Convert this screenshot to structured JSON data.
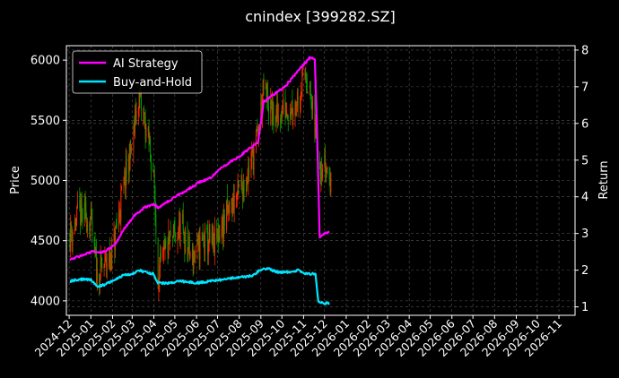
{
  "chart_data": {
    "type": "line",
    "title": "cnindex [399282.SZ]",
    "ylabel": "Price",
    "y2label": "Return",
    "ylim": [
      3880,
      6120
    ],
    "y2lim": [
      0.77,
      8.12
    ],
    "yticks": [
      4000,
      4500,
      5000,
      5500,
      6000
    ],
    "y2ticks": [
      1,
      2,
      3,
      4,
      5,
      6,
      7,
      8
    ],
    "xlim": [
      "2024-11-27",
      "2026-11-24"
    ],
    "xticks": [
      "2024-12",
      "2025-01",
      "2025-02",
      "2025-03",
      "2025-04",
      "2025-05",
      "2025-06",
      "2025-07",
      "2025-08",
      "2025-09",
      "2025-10",
      "2025-11",
      "2025-12",
      "2026-01",
      "2026-02",
      "2026-03",
      "2026-04",
      "2026-05",
      "2026-06",
      "2026-07",
      "2026-08",
      "2026-09",
      "2026-10",
      "2026-11"
    ],
    "grid": true,
    "legend_position": "top-left",
    "colors": {
      "background": "#000000",
      "ai_strategy": "#ff00ff",
      "buy_and_hold": "#00e5ff",
      "candle_up": "#ff2a00",
      "candle_down": "#00a000",
      "grid": "#555555",
      "axes": "#ffffff"
    },
    "series": [
      {
        "name": "AI Strategy",
        "axis": "right",
        "points": [
          [
            "2024-12-02",
            2.3
          ],
          [
            "2024-12-20",
            2.4
          ],
          [
            "2025-01-02",
            2.5
          ],
          [
            "2025-01-20",
            2.5
          ],
          [
            "2025-02-05",
            2.7
          ],
          [
            "2025-02-20",
            3.2
          ],
          [
            "2025-03-05",
            3.5
          ],
          [
            "2025-03-18",
            3.7
          ],
          [
            "2025-03-31",
            3.8
          ],
          [
            "2025-04-07",
            3.7
          ],
          [
            "2025-04-15",
            3.8
          ],
          [
            "2025-05-01",
            4.0
          ],
          [
            "2025-05-20",
            4.2
          ],
          [
            "2025-06-05",
            4.4
          ],
          [
            "2025-06-20",
            4.5
          ],
          [
            "2025-07-01",
            4.7
          ],
          [
            "2025-07-15",
            4.9
          ],
          [
            "2025-08-01",
            5.1
          ],
          [
            "2025-08-15",
            5.3
          ],
          [
            "2025-08-28",
            5.5
          ],
          [
            "2025-09-05",
            6.6
          ],
          [
            "2025-09-20",
            6.8
          ],
          [
            "2025-10-05",
            7.0
          ],
          [
            "2025-10-18",
            7.3
          ],
          [
            "2025-11-01",
            7.6
          ],
          [
            "2025-11-10",
            7.8
          ],
          [
            "2025-11-17",
            7.75
          ],
          [
            "2025-11-20",
            6.0
          ],
          [
            "2025-11-24",
            2.9
          ],
          [
            "2025-12-01",
            3.0
          ],
          [
            "2025-12-08",
            3.05
          ]
        ]
      },
      {
        "name": "Buy-and-Hold",
        "axis": "right",
        "points": [
          [
            "2024-12-02",
            1.7
          ],
          [
            "2024-12-15",
            1.75
          ],
          [
            "2024-12-31",
            1.75
          ],
          [
            "2025-01-10",
            1.55
          ],
          [
            "2025-01-20",
            1.6
          ],
          [
            "2025-02-01",
            1.7
          ],
          [
            "2025-02-15",
            1.85
          ],
          [
            "2025-03-01",
            1.9
          ],
          [
            "2025-03-10",
            2.0
          ],
          [
            "2025-03-20",
            1.95
          ],
          [
            "2025-03-31",
            1.9
          ],
          [
            "2025-04-07",
            1.65
          ],
          [
            "2025-04-20",
            1.65
          ],
          [
            "2025-05-10",
            1.7
          ],
          [
            "2025-06-01",
            1.65
          ],
          [
            "2025-06-20",
            1.7
          ],
          [
            "2025-07-10",
            1.75
          ],
          [
            "2025-08-01",
            1.8
          ],
          [
            "2025-08-20",
            1.85
          ],
          [
            "2025-08-31",
            2.0
          ],
          [
            "2025-09-10",
            2.05
          ],
          [
            "2025-09-25",
            1.95
          ],
          [
            "2025-10-10",
            1.95
          ],
          [
            "2025-10-25",
            2.0
          ],
          [
            "2025-11-05",
            1.9
          ],
          [
            "2025-11-18",
            1.9
          ],
          [
            "2025-11-22",
            1.15
          ],
          [
            "2025-12-01",
            1.1
          ],
          [
            "2025-12-08",
            1.1
          ]
        ]
      },
      {
        "name": "Price",
        "axis": "left",
        "type": "candlestick",
        "points": [
          [
            "2024-12-02",
            4550
          ],
          [
            "2024-12-15",
            4720
          ],
          [
            "2024-12-31",
            4680
          ],
          [
            "2025-01-10",
            4200
          ],
          [
            "2025-01-20",
            4300
          ],
          [
            "2025-02-01",
            4400
          ],
          [
            "2025-02-15",
            4900
          ],
          [
            "2025-03-01",
            5300
          ],
          [
            "2025-03-10",
            5700
          ],
          [
            "2025-03-20",
            5450
          ],
          [
            "2025-03-31",
            5100
          ],
          [
            "2025-04-07",
            4200
          ],
          [
            "2025-04-20",
            4450
          ],
          [
            "2025-05-10",
            4600
          ],
          [
            "2025-05-25",
            4350
          ],
          [
            "2025-06-10",
            4500
          ],
          [
            "2025-06-25",
            4450
          ],
          [
            "2025-07-10",
            4650
          ],
          [
            "2025-07-25",
            4850
          ],
          [
            "2025-08-10",
            5000
          ],
          [
            "2025-08-25",
            5300
          ],
          [
            "2025-09-05",
            5750
          ],
          [
            "2025-09-20",
            5500
          ],
          [
            "2025-10-05",
            5600
          ],
          [
            "2025-10-20",
            5650
          ],
          [
            "2025-11-05",
            5900
          ],
          [
            "2025-11-15",
            5500
          ],
          [
            "2025-11-25",
            5150
          ],
          [
            "2025-12-05",
            5100
          ],
          [
            "2025-12-10",
            4950
          ]
        ]
      }
    ]
  }
}
